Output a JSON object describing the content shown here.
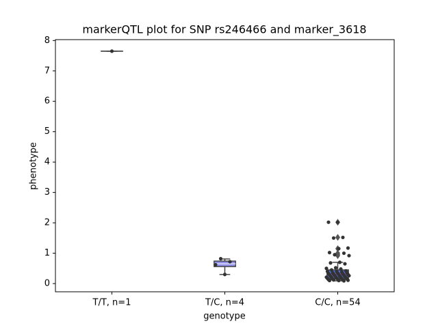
{
  "chart_data": {
    "type": "box",
    "title": "markerQTL plot for SNP rs246466 and marker_3618",
    "xlabel": "genotype",
    "ylabel": "phenotype",
    "categories": [
      "T/T, n=1",
      "T/C, n=4",
      "C/C, n=54"
    ],
    "ylim": [
      -0.27,
      8.03
    ],
    "yticks": [
      0,
      1,
      2,
      3,
      4,
      5,
      6,
      7,
      8
    ],
    "point_color": "#333333",
    "line_color": "#444444",
    "series": [
      {
        "color": "#5875d0",
        "median_color": "#444444",
        "whislo": 7.65,
        "q1": 7.65,
        "median": 7.65,
        "q3": 7.65,
        "whishi": 7.65,
        "fliers": [],
        "points": [
          7.65
        ]
      },
      {
        "color": "#8f8fe8",
        "median_color": "#e0e0ff",
        "whislo": 0.3,
        "q1": 0.56,
        "median": 0.65,
        "q3": 0.74,
        "whishi": 0.81,
        "fliers": [],
        "points": [
          0.3,
          0.62,
          0.72,
          0.82
        ]
      },
      {
        "color": "#4f6fd8",
        "median_color": "#e040e0",
        "whislo": 0.09,
        "q1": 0.15,
        "median": 0.31,
        "q3": 0.45,
        "whishi": 0.7,
        "fliers": [
          2.02,
          1.52,
          1.15,
          1.0,
          0.95,
          0.92
        ],
        "points": [
          2.02,
          2.02,
          1.52,
          1.5,
          1.17,
          1.15,
          1.02,
          1.0,
          0.95,
          0.92,
          0.7,
          0.68,
          0.65,
          0.52,
          0.5,
          0.48,
          0.45,
          0.42,
          0.4,
          0.4,
          0.38,
          0.36,
          0.35,
          0.34,
          0.33,
          0.32,
          0.31,
          0.3,
          0.3,
          0.29,
          0.28,
          0.27,
          0.26,
          0.25,
          0.24,
          0.23,
          0.22,
          0.21,
          0.2,
          0.2,
          0.19,
          0.18,
          0.17,
          0.16,
          0.15,
          0.15,
          0.14,
          0.13,
          0.12,
          0.12,
          0.11,
          0.1,
          0.1,
          0.09
        ]
      }
    ]
  }
}
